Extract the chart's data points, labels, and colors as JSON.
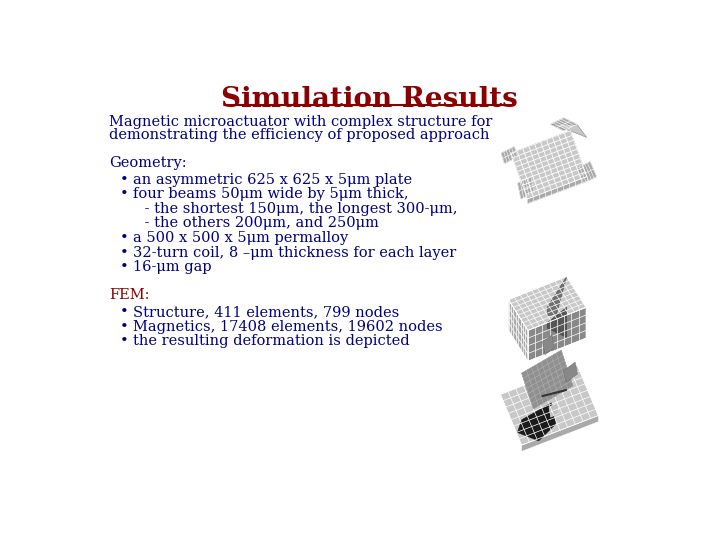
{
  "title": "Simulation Results",
  "title_color": "#8B0000",
  "title_fontsize": 20,
  "bg_color": "#FFFFFF",
  "text_color": "#000080",
  "fem_header_color": "#8B0000",
  "subtitle_line1": "Magnetic microactuator with complex structure for",
  "subtitle_line2": "demonstrating the efficiency of proposed approach",
  "subtitle_fontsize": 10.5,
  "geometry_header": "Geometry:",
  "geometry_header_color": "#000080",
  "bullet_color": "#000080",
  "bullet_fontsize": 10.5,
  "header_fontsize": 10.5,
  "geometry_lines": [
    {
      "text": "an asymmetric 625 x 625 x 5μm plate",
      "bullet": true,
      "indent": false
    },
    {
      "text": "four beams 50μm wide by 5μm thick,",
      "bullet": true,
      "indent": false
    },
    {
      "text": " - the shortest 150μm, the longest 300-μm,",
      "bullet": false,
      "indent": true
    },
    {
      "text": " - the others 200μm, and 250μm",
      "bullet": false,
      "indent": true
    },
    {
      "text": "a 500 x 500 x 5μm permalloy",
      "bullet": true,
      "indent": false
    },
    {
      "text": "32-turn coil, 8 –μm thickness for each layer",
      "bullet": true,
      "indent": false
    },
    {
      "text": "16-μm gap",
      "bullet": true,
      "indent": false
    }
  ],
  "fem_header": "FEM:",
  "fem_lines": [
    "Structure, 411 elements, 799 nodes",
    "Magnetics, 17408 elements, 19602 nodes",
    "the resulting deformation is depicted"
  ],
  "mesh_color_light": "#C8C8C8",
  "mesh_color_mid": "#AAAAAA",
  "mesh_color_dark": "#888888",
  "mesh_color_darker": "#606060",
  "mesh_color_black": "#202020",
  "mesh_line_color": "#FFFFFF"
}
